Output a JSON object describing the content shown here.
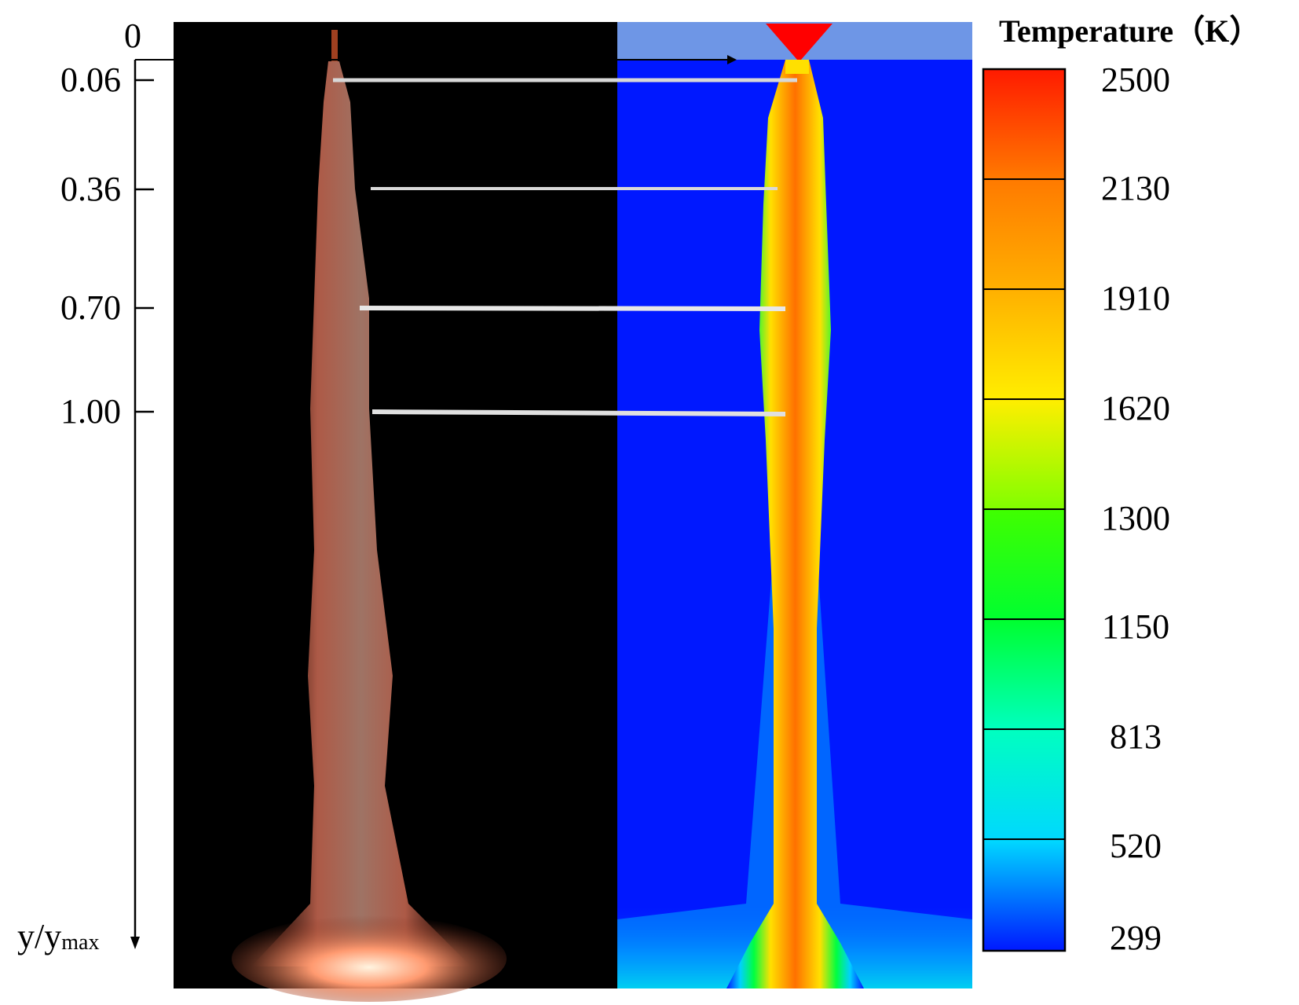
{
  "y_axis": {
    "ticks": [
      "0",
      "0.06",
      "0.36",
      "0.70",
      "1.00"
    ],
    "label_main": "y/y",
    "label_sub": "max"
  },
  "colorbar": {
    "title": "Temperature（K）",
    "labels": [
      "2500",
      "2130",
      "1910",
      "1620",
      "1300",
      "1150",
      "813",
      "520",
      "299"
    ],
    "colors": [
      "#ff0000",
      "#ff8000",
      "#ffd400",
      "#c8ff00",
      "#00e600",
      "#00f0a0",
      "#00f0f0",
      "#00a0ff",
      "#0010ff"
    ]
  },
  "colors": {
    "photo_bg": "#000000",
    "flame": "#ff8a5a",
    "cfd_bg": "#0018ff",
    "nozzle": "#6e96e6",
    "guide_line": "#d8d8d8"
  }
}
